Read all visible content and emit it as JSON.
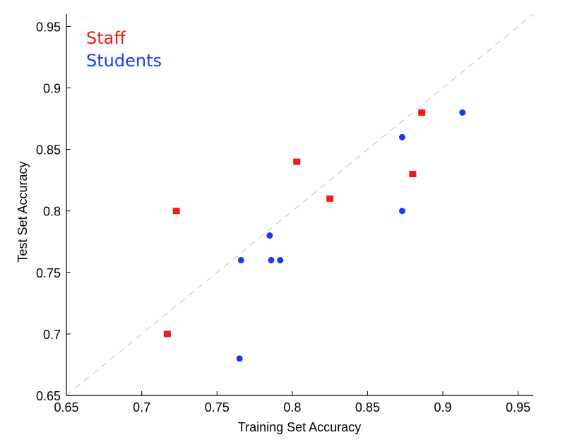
{
  "chart_data": {
    "type": "scatter",
    "title": "",
    "xlabel": "Training Set Accuracy",
    "ylabel": "Test Set Accuracy",
    "xlim": [
      0.65,
      0.96
    ],
    "ylim": [
      0.65,
      0.96
    ],
    "xticks": [
      "0.65",
      "0.7",
      "0.75",
      "0.8",
      "0.85",
      "0.9",
      "0.95"
    ],
    "yticks": [
      "0.65",
      "0.7",
      "0.75",
      "0.8",
      "0.85",
      "0.9",
      "0.95"
    ],
    "diagonal_reference": true,
    "legend_location": "top-left",
    "series": [
      {
        "name": "Staff",
        "color": "#ee1c1c",
        "marker": "square",
        "points": [
          {
            "x": 0.717,
            "y": 0.7
          },
          {
            "x": 0.723,
            "y": 0.8
          },
          {
            "x": 0.803,
            "y": 0.84
          },
          {
            "x": 0.825,
            "y": 0.81
          },
          {
            "x": 0.88,
            "y": 0.83
          },
          {
            "x": 0.886,
            "y": 0.88
          }
        ]
      },
      {
        "name": "Students",
        "color": "#1a3cf0",
        "marker": "circle",
        "points": [
          {
            "x": 0.765,
            "y": 0.68
          },
          {
            "x": 0.766,
            "y": 0.76
          },
          {
            "x": 0.785,
            "y": 0.78
          },
          {
            "x": 0.786,
            "y": 0.76
          },
          {
            "x": 0.792,
            "y": 0.76
          },
          {
            "x": 0.873,
            "y": 0.86
          },
          {
            "x": 0.873,
            "y": 0.8
          },
          {
            "x": 0.913,
            "y": 0.88
          }
        ]
      }
    ]
  }
}
